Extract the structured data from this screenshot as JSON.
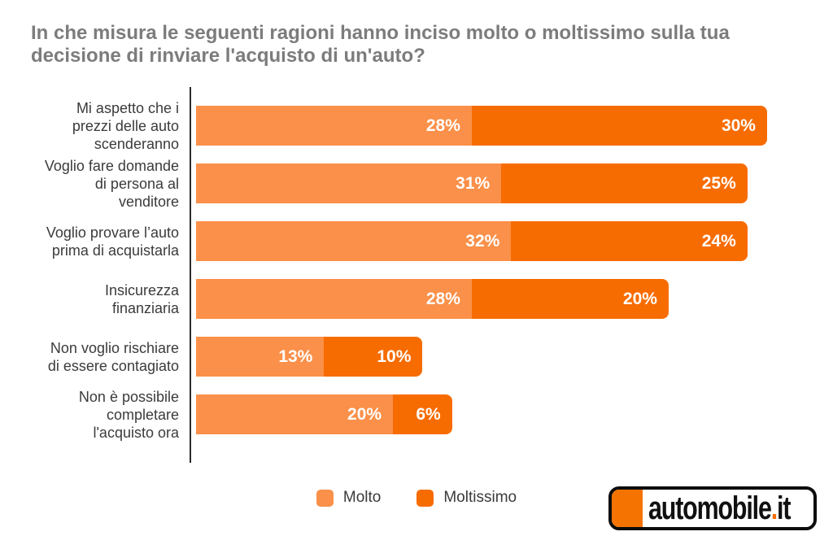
{
  "title": "In che misura le seguenti ragioni hanno inciso molto o moltissimo sulla tua\ndecisione di rinviare l'acquisto di un'auto?",
  "colors": {
    "molto": "#FA9049",
    "moltissimo": "#F76C00",
    "axis": "#2b2b2b",
    "title_text": "#7c7c7c",
    "label_text": "#3b3b3b",
    "logo_orange": "#F57301"
  },
  "chart_data": {
    "type": "bar",
    "orientation": "horizontal",
    "stacked": true,
    "categories": [
      "Mi aspetto che i\nprezzi delle auto\nscenderanno",
      "Voglio fare domande\ndi persona al\nvenditore",
      "Voglio provare l’auto\nprima di acquistarla",
      "Insicurezza\nfinanziaria",
      "Non voglio rischiare\ndi essere contagiato",
      "Non è possibile\ncompletare\nl'acquisto ora"
    ],
    "series": [
      {
        "name": "Molto",
        "color": "#FA9049",
        "values": [
          28,
          31,
          32,
          28,
          13,
          20
        ]
      },
      {
        "name": "Moltissimo",
        "color": "#F76C00",
        "values": [
          30,
          25,
          24,
          20,
          10,
          6
        ]
      }
    ],
    "value_suffix": "%",
    "xmax": 58,
    "grid": false,
    "legend_position": "bottom-center"
  },
  "legend": {
    "items": [
      {
        "label": "Molto",
        "color": "#FA9049"
      },
      {
        "label": "Moltissimo",
        "color": "#F76C00"
      }
    ]
  },
  "logo": {
    "text_main": "automobile",
    "text_dot": ".",
    "text_tld": "it"
  }
}
